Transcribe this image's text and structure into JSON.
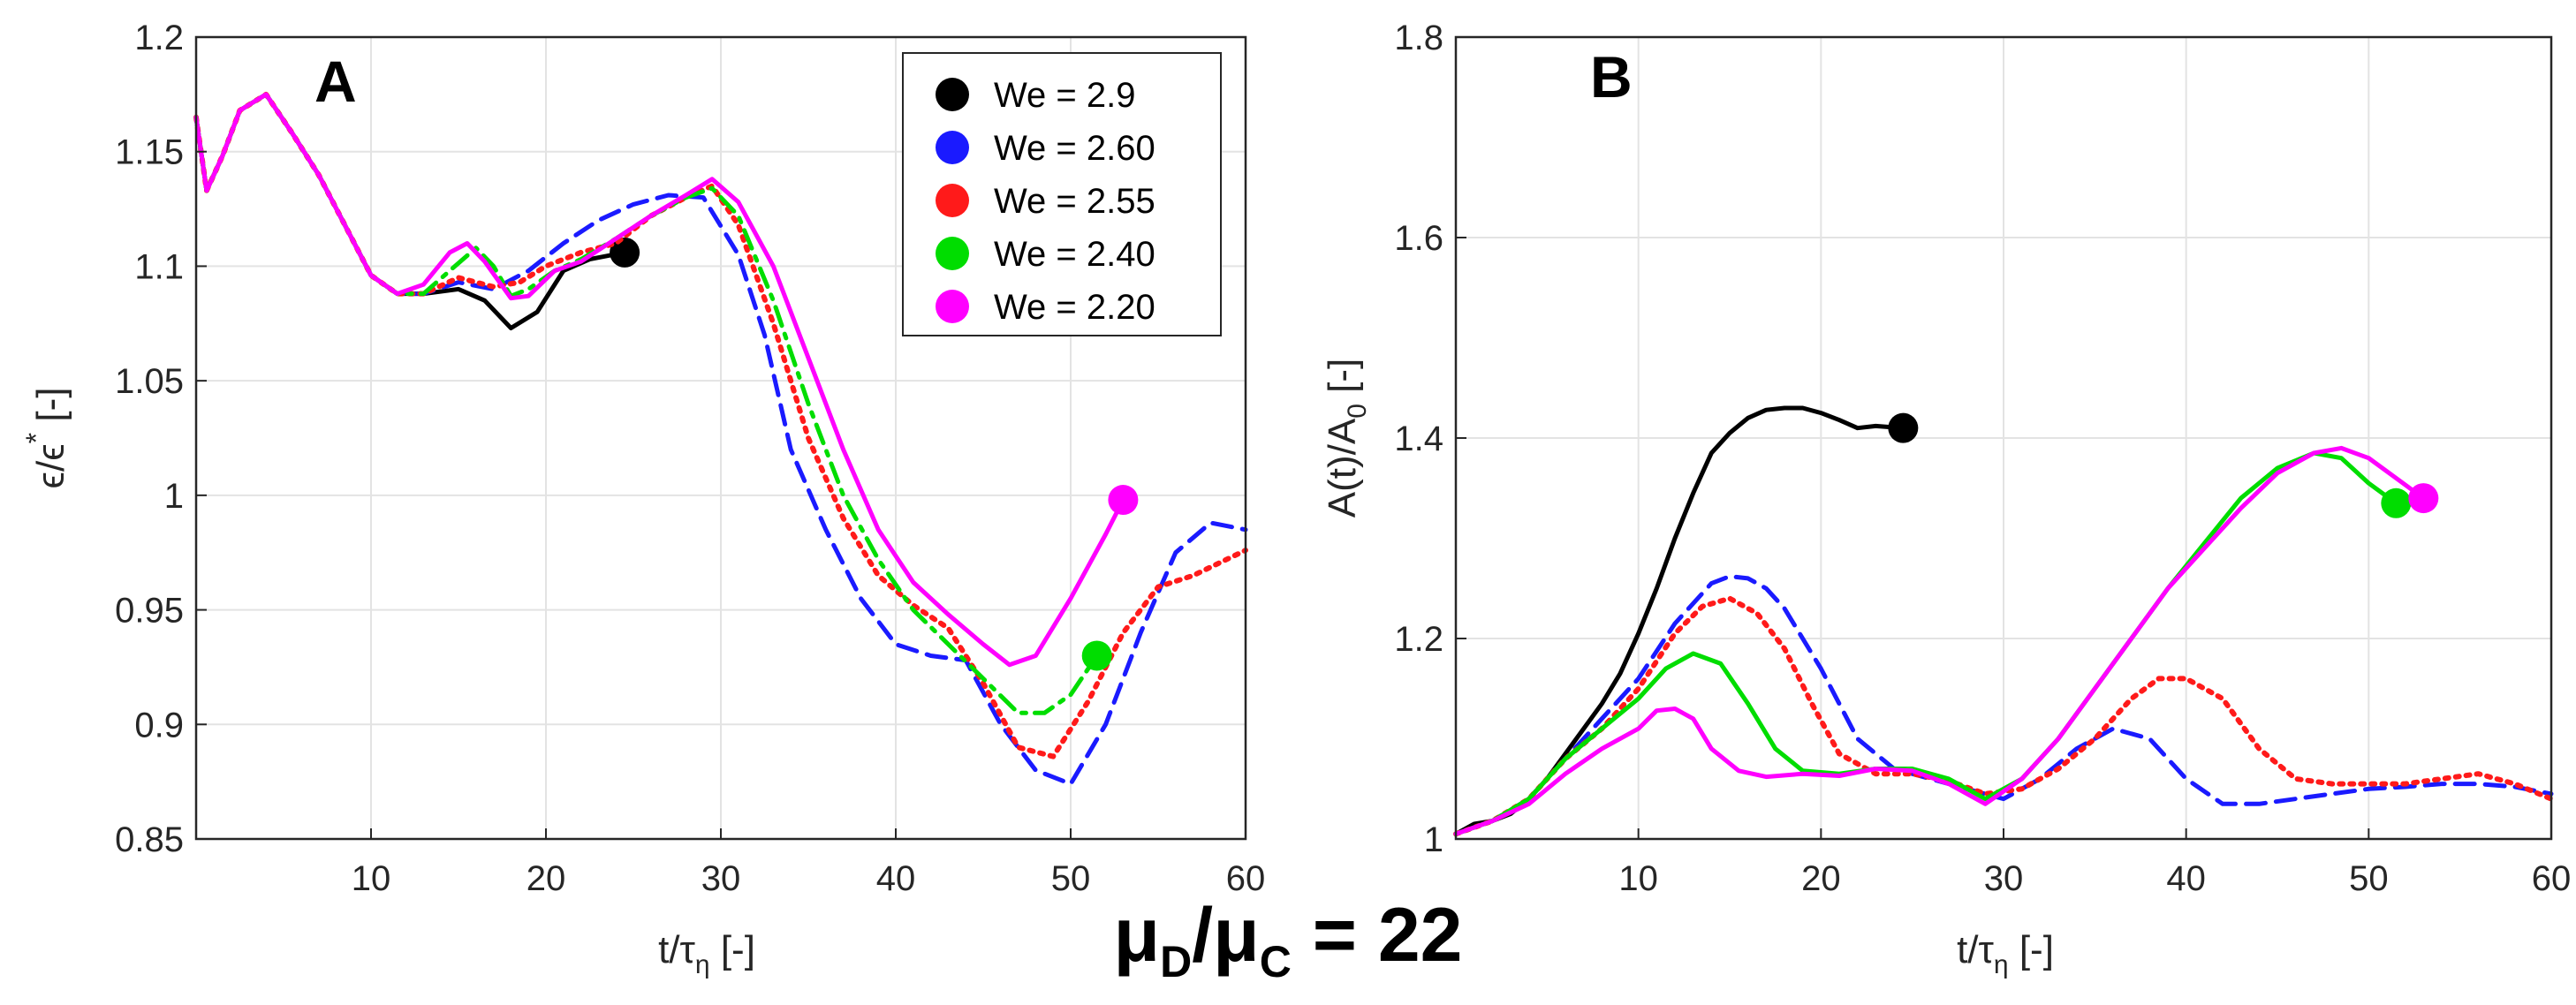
{
  "figure_label": "μD/μC = 22",
  "figure_title": {
    "mu1": "μ",
    "sub1": "D",
    "slash": "/",
    "mu2": "μ",
    "sub2": "C",
    "rest": " = 22"
  },
  "chart_data": [
    {
      "type": "line",
      "panel": "A",
      "xlabel": "t/τη [-]",
      "xlabel_parts": {
        "main": "t/τ",
        "sub": "η",
        "unit": " [-]"
      },
      "ylabel": "ε/ε* [-]",
      "ylabel_parts": {
        "main": "ϵ/ϵ",
        "sup": "*",
        "unit": " [-]"
      },
      "xlim": [
        0,
        60
      ],
      "ylim": [
        0.85,
        1.2
      ],
      "xticks": [
        10,
        20,
        30,
        40,
        50,
        60
      ],
      "xtick_labels": [
        "10",
        "20",
        "30",
        "40",
        "50",
        "60"
      ],
      "yticks": [
        0.85,
        0.9,
        0.95,
        1.0,
        1.05,
        1.1,
        1.15,
        1.2
      ],
      "ytick_labels": [
        "0.85",
        "0.9",
        "0.95",
        "1",
        "1.05",
        "1.1",
        "1.15",
        "1.2"
      ],
      "grid": true,
      "legend_position": "top-right",
      "series": [
        {
          "name": "We = 2.9",
          "color": "#000000",
          "dash": "solid",
          "x": [
            0,
            0.6,
            1.5,
            2.5,
            4,
            5.5,
            7,
            8.5,
            10,
            11.5,
            13,
            15,
            16.5,
            18,
            19.5,
            21,
            22.5,
            24.5
          ],
          "y": [
            1.165,
            1.133,
            1.148,
            1.168,
            1.175,
            1.158,
            1.14,
            1.118,
            1.096,
            1.088,
            1.088,
            1.09,
            1.085,
            1.073,
            1.08,
            1.098,
            1.103,
            1.106
          ],
          "end_marker": {
            "x": 24.5,
            "y": 1.106
          }
        },
        {
          "name": "We = 2.60",
          "color": "#1a1aff",
          "dash": "dashed",
          "x": [
            0,
            0.6,
            1.5,
            2.5,
            4,
            5.5,
            7,
            8.5,
            10,
            11.5,
            13,
            15,
            17,
            19,
            21,
            23,
            25,
            27,
            29,
            31,
            32.5,
            34,
            36,
            38,
            40,
            42,
            44,
            46,
            48,
            50,
            52,
            54,
            56,
            58,
            60
          ],
          "y": [
            1.165,
            1.133,
            1.148,
            1.168,
            1.175,
            1.158,
            1.14,
            1.118,
            1.096,
            1.088,
            1.088,
            1.093,
            1.09,
            1.098,
            1.11,
            1.12,
            1.127,
            1.131,
            1.13,
            1.105,
            1.07,
            1.02,
            0.985,
            0.955,
            0.935,
            0.93,
            0.928,
            0.9,
            0.88,
            0.874,
            0.9,
            0.94,
            0.975,
            0.988,
            0.985
          ]
        },
        {
          "name": "We = 2.55",
          "color": "#ff1a1a",
          "dash": "dotted",
          "x": [
            0,
            0.6,
            1.5,
            2.5,
            4,
            5.5,
            7,
            8.5,
            10,
            11.5,
            13,
            15,
            17,
            18.5,
            20,
            22,
            24,
            26,
            28,
            29.5,
            31,
            33,
            35,
            37,
            39,
            41,
            43,
            45,
            47,
            49,
            51,
            53,
            55,
            57,
            60
          ],
          "y": [
            1.165,
            1.133,
            1.148,
            1.168,
            1.175,
            1.158,
            1.14,
            1.118,
            1.096,
            1.088,
            1.088,
            1.095,
            1.091,
            1.093,
            1.1,
            1.106,
            1.11,
            1.122,
            1.13,
            1.135,
            1.118,
            1.075,
            1.025,
            0.99,
            0.965,
            0.952,
            0.942,
            0.918,
            0.89,
            0.886,
            0.91,
            0.94,
            0.96,
            0.965,
            0.976
          ]
        },
        {
          "name": "We = 2.40",
          "color": "#00dd00",
          "dash": "dashdot",
          "x": [
            0,
            0.6,
            1.5,
            2.5,
            4,
            5.5,
            7,
            8.5,
            10,
            11.5,
            13,
            14.5,
            16,
            17,
            18,
            19,
            20.5,
            22,
            24,
            26,
            28,
            29.5,
            31,
            33,
            35,
            37,
            39,
            41,
            43,
            45,
            47,
            48.5,
            50,
            51.5
          ],
          "y": [
            1.165,
            1.133,
            1.148,
            1.168,
            1.175,
            1.158,
            1.14,
            1.118,
            1.096,
            1.088,
            1.088,
            1.098,
            1.108,
            1.1,
            1.087,
            1.09,
            1.098,
            1.103,
            1.112,
            1.122,
            1.13,
            1.134,
            1.122,
            1.085,
            1.04,
            1.0,
            0.972,
            0.95,
            0.935,
            0.92,
            0.905,
            0.905,
            0.913,
            0.93
          ],
          "end_marker": {
            "x": 51.5,
            "y": 0.93
          }
        },
        {
          "name": "We = 2.20",
          "color": "#ff00ff",
          "dash": "solid",
          "x": [
            0,
            0.6,
            1.5,
            2.5,
            4,
            5.5,
            7,
            8.5,
            10,
            11.5,
            13,
            14.5,
            15.5,
            16.5,
            18,
            19,
            20.5,
            22,
            24,
            26,
            28,
            29.5,
            31,
            33,
            35,
            37,
            39,
            41,
            43,
            45,
            46.5,
            48,
            50,
            52,
            53
          ],
          "y": [
            1.165,
            1.133,
            1.148,
            1.168,
            1.175,
            1.158,
            1.14,
            1.118,
            1.096,
            1.088,
            1.092,
            1.106,
            1.11,
            1.102,
            1.086,
            1.087,
            1.098,
            1.102,
            1.112,
            1.122,
            1.131,
            1.138,
            1.128,
            1.1,
            1.06,
            1.02,
            0.985,
            0.962,
            0.948,
            0.935,
            0.926,
            0.93,
            0.955,
            0.983,
            0.998
          ],
          "end_marker": {
            "x": 53,
            "y": 0.998
          }
        }
      ]
    },
    {
      "type": "line",
      "panel": "B",
      "xlabel": "t/τη [-]",
      "xlabel_parts": {
        "main": "t/τ",
        "sub": "η",
        "unit": " [-]"
      },
      "ylabel": "A(t)/A0 [-]",
      "ylabel_parts": {
        "main": "A(t)/A",
        "sub": "0",
        "unit": " [-]"
      },
      "xlim": [
        0,
        60
      ],
      "ylim": [
        1.0,
        1.8
      ],
      "xticks": [
        10,
        20,
        30,
        40,
        50,
        60
      ],
      "xtick_labels": [
        "10",
        "20",
        "30",
        "40",
        "50",
        "60"
      ],
      "yticks": [
        1.0,
        1.2,
        1.4,
        1.6,
        1.8
      ],
      "ytick_labels": [
        "1",
        "1.2",
        "1.4",
        "1.6",
        "1.8"
      ],
      "grid": true,
      "series": [
        {
          "name": "We = 2.9",
          "color": "#000000",
          "dash": "solid",
          "x": [
            0,
            1,
            2,
            3,
            4,
            5,
            6,
            7,
            8,
            9,
            10,
            11,
            12,
            13,
            14,
            15,
            16,
            17,
            18,
            19,
            20,
            21,
            22,
            23,
            24.5
          ],
          "y": [
            1.005,
            1.015,
            1.018,
            1.025,
            1.04,
            1.06,
            1.085,
            1.11,
            1.135,
            1.165,
            1.205,
            1.25,
            1.3,
            1.345,
            1.385,
            1.405,
            1.42,
            1.428,
            1.43,
            1.43,
            1.425,
            1.418,
            1.41,
            1.412,
            1.41
          ],
          "end_marker": {
            "x": 24.5,
            "y": 1.41
          }
        },
        {
          "name": "We = 2.60",
          "color": "#1a1aff",
          "dash": "dashed",
          "x": [
            0,
            2,
            4,
            6,
            8,
            10,
            12,
            14,
            15,
            16,
            17,
            18,
            20,
            22,
            24,
            26,
            28,
            30,
            32,
            34,
            36,
            38,
            40,
            42,
            44,
            46,
            48,
            50,
            52,
            54,
            56,
            58,
            60
          ],
          "y": [
            1.005,
            1.018,
            1.04,
            1.08,
            1.12,
            1.16,
            1.215,
            1.255,
            1.262,
            1.26,
            1.25,
            1.23,
            1.17,
            1.1,
            1.07,
            1.06,
            1.05,
            1.04,
            1.06,
            1.09,
            1.11,
            1.1,
            1.06,
            1.035,
            1.035,
            1.04,
            1.045,
            1.05,
            1.052,
            1.055,
            1.055,
            1.052,
            1.045
          ]
        },
        {
          "name": "We = 2.55",
          "color": "#ff1a1a",
          "dash": "dotted",
          "x": [
            0,
            2,
            4,
            6,
            8,
            10,
            12,
            13.5,
            15,
            16.5,
            18,
            19.5,
            21,
            23,
            25,
            27,
            29,
            31,
            33,
            35,
            37,
            38.5,
            40,
            42,
            44,
            46,
            48,
            50,
            52,
            54,
            56,
            58,
            60
          ],
          "y": [
            1.005,
            1.018,
            1.04,
            1.08,
            1.11,
            1.15,
            1.205,
            1.232,
            1.24,
            1.225,
            1.19,
            1.135,
            1.085,
            1.065,
            1.065,
            1.058,
            1.045,
            1.05,
            1.07,
            1.1,
            1.14,
            1.16,
            1.16,
            1.14,
            1.09,
            1.06,
            1.055,
            1.055,
            1.055,
            1.06,
            1.065,
            1.055,
            1.04
          ]
        },
        {
          "name": "We = 2.40",
          "color": "#00dd00",
          "dash": "solid",
          "x": [
            0,
            2,
            4,
            6,
            8,
            10,
            11.5,
            13,
            14.5,
            16,
            17.5,
            19,
            21,
            23,
            25,
            27,
            29,
            31,
            33,
            35,
            37,
            39,
            41,
            43,
            45,
            47,
            48.5,
            50,
            51.5
          ],
          "y": [
            1.005,
            1.018,
            1.04,
            1.08,
            1.11,
            1.14,
            1.17,
            1.185,
            1.175,
            1.135,
            1.09,
            1.068,
            1.065,
            1.07,
            1.07,
            1.06,
            1.04,
            1.06,
            1.1,
            1.15,
            1.2,
            1.25,
            1.295,
            1.34,
            1.37,
            1.385,
            1.38,
            1.355,
            1.335
          ],
          "end_marker": {
            "x": 51.5,
            "y": 1.335
          }
        },
        {
          "name": "We = 2.20",
          "color": "#ff00ff",
          "dash": "solid",
          "x": [
            0,
            2,
            4,
            6,
            8,
            10,
            11,
            12,
            13,
            14,
            15.5,
            17,
            19,
            21,
            23,
            25,
            27,
            29,
            31,
            33,
            35,
            37,
            39,
            41,
            43,
            45,
            47,
            48.5,
            50,
            51.5,
            53
          ],
          "y": [
            1.005,
            1.018,
            1.035,
            1.065,
            1.09,
            1.11,
            1.128,
            1.13,
            1.12,
            1.09,
            1.068,
            1.062,
            1.065,
            1.063,
            1.07,
            1.068,
            1.055,
            1.035,
            1.06,
            1.1,
            1.15,
            1.2,
            1.25,
            1.29,
            1.33,
            1.365,
            1.385,
            1.39,
            1.38,
            1.36,
            1.34
          ],
          "end_marker": {
            "x": 53,
            "y": 1.34
          }
        }
      ]
    }
  ]
}
